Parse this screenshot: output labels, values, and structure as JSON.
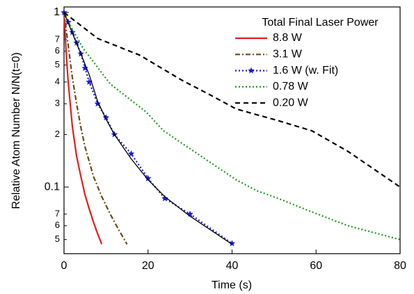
{
  "chart_data": {
    "type": "line",
    "x_label": "Time (s)",
    "y_label": "Relative Atom Number N/N(t=0)",
    "legend_title": "Total Final Laser Power",
    "legend": "upper right",
    "ylog": true,
    "xlim": [
      0,
      80
    ],
    "ylim": [
      0.0415,
      1.076
    ],
    "xticks": [
      0,
      20,
      40,
      60,
      80
    ],
    "yticks": [
      1,
      {
        "value": 0.7,
        "label": "7"
      },
      {
        "value": 0.6,
        "label": "6"
      },
      {
        "value": 0.5,
        "label": "5"
      },
      {
        "value": 0.4,
        "label": "4"
      },
      {
        "value": 0.3,
        "label": "3"
      },
      {
        "value": 0.2,
        "label": "2"
      },
      0.1,
      {
        "value": 0.07,
        "label": "7"
      },
      {
        "value": 0.06,
        "label": "6"
      },
      {
        "value": 0.05,
        "label": "5"
      }
    ],
    "series": [
      {
        "name": "8.8 W",
        "color": "#e41e1e",
        "line_style": "solid",
        "x": [
          0,
          0.5,
          1,
          2,
          3,
          4,
          5,
          6,
          7,
          8,
          9
        ],
        "values": [
          1,
          0.6,
          0.4,
          0.22,
          0.15,
          0.115,
          0.09,
          0.075,
          0.063,
          0.054,
          0.047
        ]
      },
      {
        "name": "3.1 W",
        "color": "#6b4a13",
        "line_style": "dashdot",
        "x": [
          0,
          1,
          2,
          3,
          4,
          5,
          7,
          9,
          11,
          13,
          15
        ],
        "values": [
          1,
          0.65,
          0.42,
          0.3,
          0.22,
          0.17,
          0.115,
          0.088,
          0.07,
          0.057,
          0.047
        ]
      },
      {
        "name": "1.6 W (w. Fit)",
        "color": "#1a1adb",
        "line_style": "dotted",
        "marker": "star",
        "x": [
          0,
          1,
          2,
          3,
          4,
          5,
          6,
          8,
          10,
          12,
          16,
          20,
          24,
          30,
          40
        ],
        "values": [
          1,
          0.88,
          0.77,
          0.67,
          0.58,
          0.48,
          0.4,
          0.3,
          0.25,
          0.2,
          0.155,
          0.112,
          0.086,
          0.07,
          0.0475
        ]
      },
      {
        "name": "0.78 W",
        "color": "#1f9a1f",
        "line_style": "dotted",
        "x": [
          0,
          1.3,
          4.6,
          11,
          19.5,
          23.7,
          27.8,
          34.5,
          41,
          46,
          51,
          59,
          67.6,
          80
        ],
        "values": [
          1,
          0.86,
          0.62,
          0.39,
          0.27,
          0.21,
          0.18,
          0.14,
          0.11,
          0.095,
          0.086,
          0.072,
          0.06,
          0.05
        ]
      },
      {
        "name": "0.20 W",
        "color": "#000000",
        "line_style": "dashed",
        "x": [
          0,
          8,
          18,
          28,
          34.5,
          41,
          51,
          59,
          67.6,
          80
        ],
        "values": [
          1,
          0.71,
          0.57,
          0.41,
          0.34,
          0.28,
          0.24,
          0.21,
          0.16,
          0.1
        ]
      },
      {
        "color": "#000000",
        "line_style": "solid",
        "x": [
          0,
          2,
          4,
          6,
          8,
          10,
          12,
          16,
          20,
          24,
          30,
          40
        ],
        "values": [
          1,
          0.76,
          0.58,
          0.44,
          0.31,
          0.245,
          0.2,
          0.145,
          0.11,
          0.088,
          0.068,
          0.047
        ]
      }
    ]
  }
}
